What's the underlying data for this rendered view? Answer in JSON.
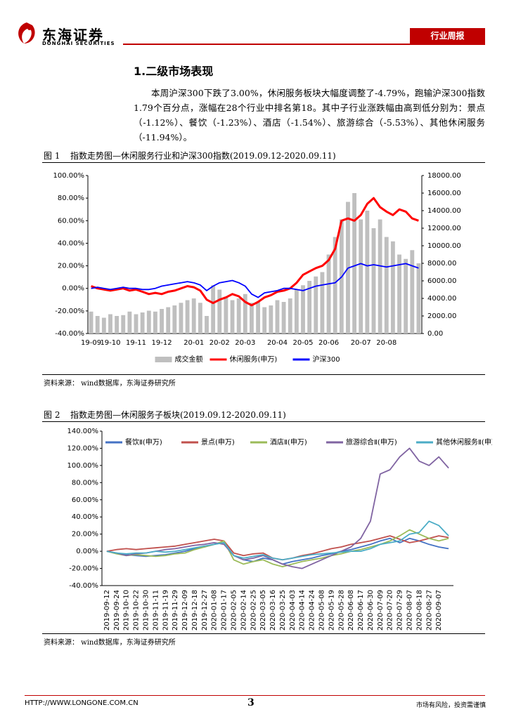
{
  "header": {
    "brand": "东海证券",
    "brand_en": "DONGHAI SECURITIES",
    "report_type": "行业周报"
  },
  "section_title": "1.二级市场表现",
  "paragraph": "本周沪深300下跌了3.00%，休闲服务板块大幅度调整了-4.79%，跑输沪深300指数1.79个百分点，涨幅在28个行业中排名第18。其中子行业涨跌幅由高到低分别为：景点（-1.12%）、餐饮（-1.23%）、酒店（-1.54%）、旅游综合（-5.53%）、其他休闲服务（-11.94%）。",
  "figures": [
    {
      "label": "图 1",
      "caption": "指数走势图—休闲服务行业和沪深300指数(2019.09.12-2020.09.11)",
      "source": "资料来源：  wind数据库，东海证券研究所"
    },
    {
      "label": "图 2",
      "caption": "指数走势图—休闲服务子板块(2019.09.12-2020.09.11)",
      "source": "资料来源：  wind数据库，东海证券研究所"
    }
  ],
  "footer": {
    "url": "HTTP://WWW.LONGONE.COM.CN",
    "page": "3",
    "disclaimer": "市场有风险，投资需谨慎"
  },
  "chart_data": [
    {
      "type": "bar_line",
      "legend": "bottom",
      "grid": false,
      "categories": [
        "19-09",
        null,
        null,
        "19-10",
        null,
        null,
        null,
        "19-11",
        null,
        null,
        null,
        "19-12",
        null,
        null,
        null,
        null,
        "20-01",
        null,
        null,
        null,
        "20-02",
        null,
        null,
        null,
        "20-03",
        null,
        null,
        null,
        null,
        "20-04",
        null,
        null,
        null,
        "20-05",
        null,
        null,
        null,
        "20-06",
        null,
        null,
        null,
        null,
        "20-07",
        null,
        null,
        null,
        "20-08",
        null,
        null,
        null,
        null,
        null
      ],
      "ylim": [
        -40,
        100
      ],
      "yticks": [
        {
          "value": -40,
          "label": "-40.00%"
        },
        {
          "value": -20,
          "label": "-20.00%"
        },
        {
          "value": 0,
          "label": "0.00%"
        },
        {
          "value": 20,
          "label": "20.00%"
        },
        {
          "value": 40,
          "label": "40.00%"
        },
        {
          "value": 60,
          "label": "60.00%"
        },
        {
          "value": 80,
          "label": "80.00%"
        },
        {
          "value": 100,
          "label": "100.00%"
        }
      ],
      "y2lim": [
        0,
        18000
      ],
      "y2ticks": [
        {
          "value": 0,
          "label": "0.00"
        },
        {
          "value": 2000,
          "label": "2000.00"
        },
        {
          "value": 4000,
          "label": "4000.00"
        },
        {
          "value": 6000,
          "label": "6000.00"
        },
        {
          "value": 8000,
          "label": "8000.00"
        },
        {
          "value": 10000,
          "label": "10000.00"
        },
        {
          "value": 12000,
          "label": "12000.00"
        },
        {
          "value": 14000,
          "label": "14000.00"
        },
        {
          "value": 16000,
          "label": "16000.00"
        },
        {
          "value": 18000,
          "label": "18000.00"
        }
      ],
      "series": [
        {
          "name": "成交金额",
          "type": "bar",
          "axis": "y2",
          "color": "#bfbfbf",
          "values": [
            2500,
            2000,
            1800,
            2200,
            2000,
            2100,
            2500,
            2200,
            2400,
            2600,
            2500,
            2800,
            3000,
            3200,
            3500,
            3800,
            4000,
            3500,
            2000,
            5500,
            5000,
            4200,
            3800,
            4000,
            4500,
            3500,
            3600,
            3000,
            3200,
            3800,
            3600,
            4000,
            5000,
            5500,
            6000,
            6500,
            7000,
            9000,
            11000,
            13000,
            15000,
            16000,
            13000,
            14000,
            12000,
            13000,
            11000,
            10500,
            9000,
            8500,
            9500,
            8000
          ]
        },
        {
          "name": "休闲服务(申万)",
          "type": "line",
          "color": "#ff0000",
          "values": [
            2,
            0,
            -1,
            -2,
            -1,
            0,
            -2,
            -1,
            -3,
            -5,
            -4,
            -5,
            -3,
            -2,
            0,
            2,
            1,
            -2,
            -10,
            -13,
            -10,
            -8,
            -5,
            -7,
            -12,
            -15,
            -12,
            -8,
            -6,
            -3,
            -2,
            0,
            5,
            12,
            15,
            18,
            20,
            25,
            35,
            60,
            62,
            60,
            65,
            75,
            80,
            72,
            68,
            65,
            70,
            68,
            62,
            60
          ]
        },
        {
          "name": "沪深300",
          "type": "line",
          "color": "#0000ff",
          "values": [
            0,
            1,
            0,
            -1,
            0,
            1,
            0,
            0,
            -1,
            -1,
            0,
            2,
            3,
            4,
            5,
            6,
            5,
            3,
            -2,
            2,
            5,
            6,
            7,
            5,
            2,
            -5,
            -8,
            -4,
            -3,
            -2,
            0,
            0,
            -1,
            -2,
            0,
            2,
            3,
            4,
            5,
            10,
            18,
            20,
            22,
            20,
            21,
            20,
            19,
            20,
            21,
            22,
            20,
            18
          ]
        }
      ]
    },
    {
      "type": "line",
      "legend": "top",
      "grid": false,
      "categories": [
        "2019-09-12",
        "2019-09-24",
        "2019-10-10",
        "2019-10-22",
        "2019-10-30",
        "2019-11-11",
        "2019-11-19",
        "2019-11-29",
        "2019-12-09",
        "2019-12-18",
        "2019-12-27",
        "2020-01-08",
        "2020-01-17",
        "2020-02-05",
        "2020-02-14",
        "2020-02-25",
        "2020-03-05",
        "2020-03-16",
        "2020-03-25",
        "2020-04-03",
        "2020-04-14",
        "2020-04-24",
        "2020-05-08",
        "2020-05-19",
        "2020-05-28",
        "2020-06-08",
        "2020-06-17",
        "2020-06-30",
        "2020-07-09",
        "2020-07-20",
        "2020-07-29",
        "2020-08-07",
        "2020-08-18",
        "2020-08-27",
        "2020-09-07",
        null
      ],
      "ylim": [
        -40,
        140
      ],
      "yticks": [
        {
          "value": -40,
          "label": "-40.00%"
        },
        {
          "value": -20,
          "label": "-20.00%"
        },
        {
          "value": 0,
          "label": "0.00%"
        },
        {
          "value": 20,
          "label": "20.00%"
        },
        {
          "value": 40,
          "label": "40.00%"
        },
        {
          "value": 60,
          "label": "60.00%"
        },
        {
          "value": 80,
          "label": "80.00%"
        },
        {
          "value": 100,
          "label": "100.00%"
        },
        {
          "value": 120,
          "label": "120.00%"
        },
        {
          "value": 140,
          "label": "140.00%"
        }
      ],
      "series": [
        {
          "name": "餐饮Ⅱ(申万)",
          "color": "#4472c4",
          "values": [
            0,
            -2,
            -4,
            -5,
            -6,
            -5,
            -4,
            -2,
            0,
            3,
            5,
            8,
            10,
            -5,
            -10,
            -12,
            -8,
            -10,
            -15,
            -12,
            -10,
            -8,
            -5,
            -3,
            0,
            2,
            5,
            8,
            12,
            15,
            10,
            15,
            12,
            8,
            5,
            3
          ]
        },
        {
          "name": "景点(申万)",
          "color": "#c0504d",
          "values": [
            0,
            2,
            3,
            2,
            3,
            4,
            5,
            6,
            8,
            10,
            12,
            14,
            12,
            -2,
            -5,
            -3,
            -2,
            -8,
            -10,
            -8,
            -5,
            -3,
            0,
            3,
            5,
            8,
            10,
            12,
            15,
            18,
            14,
            10,
            12,
            15,
            18,
            16
          ]
        },
        {
          "name": "酒店Ⅱ(申万)",
          "color": "#9bbb59",
          "values": [
            0,
            -3,
            -5,
            -4,
            -5,
            -6,
            -5,
            -3,
            -2,
            2,
            5,
            8,
            12,
            -10,
            -15,
            -12,
            -10,
            -15,
            -18,
            -15,
            -12,
            -10,
            -8,
            -5,
            -3,
            0,
            2,
            5,
            8,
            12,
            18,
            25,
            20,
            15,
            12,
            15
          ]
        },
        {
          "name": "旅游综合Ⅱ(申万)",
          "color": "#8064a2",
          "values": [
            0,
            -2,
            -5,
            -3,
            -2,
            0,
            2,
            3,
            5,
            7,
            8,
            10,
            8,
            -5,
            -10,
            -8,
            -5,
            -10,
            -15,
            -18,
            -20,
            -15,
            -10,
            -5,
            0,
            5,
            15,
            35,
            90,
            95,
            110,
            120,
            105,
            100,
            110,
            97
          ]
        },
        {
          "name": "其他休闲服务Ⅱ(申万)",
          "color": "#4bacc6",
          "values": [
            0,
            -2,
            -3,
            -2,
            -2,
            0,
            -1,
            0,
            2,
            4,
            6,
            8,
            10,
            -5,
            -8,
            -6,
            -4,
            -8,
            -10,
            -8,
            -6,
            -4,
            -3,
            -2,
            -1,
            0,
            0,
            3,
            8,
            10,
            12,
            20,
            22,
            35,
            30,
            18
          ]
        }
      ]
    }
  ]
}
